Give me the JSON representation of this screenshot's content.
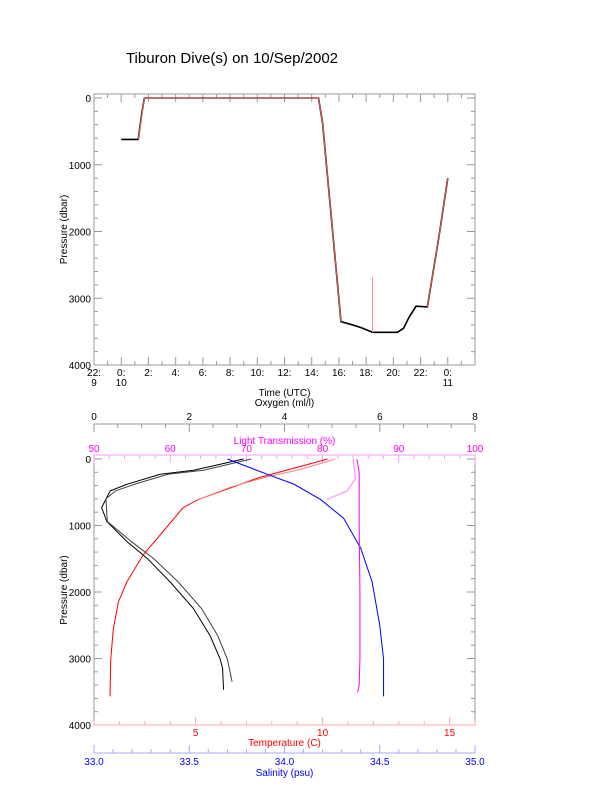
{
  "title": "Tiburon Dive(s) on 10/Sep/2002",
  "chart_data": [
    {
      "type": "line",
      "xlabel": "Time (UTC)",
      "ylabel": "Pressure (dbar)",
      "xlim": [
        "2002-09-09 22:00",
        "2002-09-11 02:00"
      ],
      "ylim": [
        4000,
        -60
      ],
      "y_ticks": [
        0,
        1000,
        2000,
        3000,
        4000
      ],
      "x_ticks": [
        {
          "t": "2002-09-09 22:00",
          "label": "22:",
          "sub": "9"
        },
        {
          "t": "2002-09-10 00:00",
          "label": "0:",
          "sub": "10"
        },
        {
          "t": "2002-09-10 02:00",
          "label": "2:",
          "sub": ""
        },
        {
          "t": "2002-09-10 04:00",
          "label": "4:",
          "sub": ""
        },
        {
          "t": "2002-09-10 06:00",
          "label": "6:",
          "sub": ""
        },
        {
          "t": "2002-09-10 08:00",
          "label": "8:",
          "sub": ""
        },
        {
          "t": "2002-09-10 10:00",
          "label": "10:",
          "sub": ""
        },
        {
          "t": "2002-09-10 12:00",
          "label": "12:",
          "sub": ""
        },
        {
          "t": "2002-09-10 14:00",
          "label": "14:",
          "sub": ""
        },
        {
          "t": "2002-09-10 16:00",
          "label": "16:",
          "sub": ""
        },
        {
          "t": "2002-09-10 18:00",
          "label": "18:",
          "sub": ""
        },
        {
          "t": "2002-09-10 20:00",
          "label": "20:",
          "sub": ""
        },
        {
          "t": "2002-09-10 22:00",
          "label": "22:",
          "sub": ""
        },
        {
          "t": "2002-09-11 00:00",
          "label": "0:",
          "sub": "11"
        }
      ],
      "series": [
        {
          "color": "#000000",
          "points": [
            [
              "2002-09-10 00:00",
              620
            ],
            [
              "2002-09-10 01:15",
              620
            ],
            [
              "2002-09-10 01:30",
              250
            ],
            [
              "2002-09-10 01:42",
              0
            ],
            [
              "2002-09-10 14:30",
              0
            ],
            [
              "2002-09-10 14:48",
              380
            ],
            [
              "2002-09-10 16:09",
              3350
            ],
            [
              "2002-09-10 17:00",
              3400
            ],
            [
              "2002-09-10 17:38",
              3440
            ],
            [
              "2002-09-10 18:28",
              3510
            ],
            [
              "2002-09-10 20:18",
              3510
            ],
            [
              "2002-09-10 20:45",
              3450
            ],
            [
              "2002-09-10 21:10",
              3280
            ],
            [
              "2002-09-10 21:40",
              3120
            ],
            [
              "2002-09-10 22:30",
              3130
            ],
            [
              "2002-09-10 23:20",
              2100
            ],
            [
              "2002-09-11 00:00",
              1200
            ]
          ]
        },
        {
          "color": "#ff6060",
          "points": [
            [
              "2002-09-10 01:15",
              620
            ],
            [
              "2002-09-10 01:42",
              0
            ],
            [
              "2002-09-10 14:30",
              0
            ],
            [
              "2002-09-10 14:48",
              380
            ],
            [
              "2002-09-10 16:09",
              3350
            ]
          ]
        },
        {
          "color": "#ff6060",
          "points": [
            [
              "2002-09-10 22:30",
              3130
            ],
            [
              "2002-09-10 23:20",
              2100
            ],
            [
              "2002-09-11 00:00",
              1200
            ]
          ]
        },
        {
          "color": "#ff8080",
          "points": [
            [
              "2002-09-10 18:28",
              3510
            ],
            [
              "2002-09-10 18:28",
              2680
            ]
          ]
        }
      ]
    },
    {
      "type": "line",
      "ylabel": "Pressure (dbar)",
      "ylim": [
        4000,
        -60
      ],
      "y_ticks": [
        0,
        1000,
        2000,
        3000,
        4000
      ],
      "axes": {
        "oxygen": {
          "label": "Oxygen (ml/l)",
          "range": [
            0,
            8
          ],
          "ticks": [
            0,
            2,
            4,
            6,
            8
          ],
          "minor": 0.5,
          "color": "#000000"
        },
        "light_transmission": {
          "label": "Light Transmission (%)",
          "range": [
            50,
            100
          ],
          "ticks": [
            50,
            60,
            70,
            80,
            90,
            100
          ],
          "minor": 2,
          "color": "#ff00ff"
        },
        "temperature": {
          "label": "Temperature (C)",
          "range": [
            1,
            16
          ],
          "ticks": [
            5,
            10,
            15
          ],
          "minor": 1,
          "color": "#ff0000"
        },
        "salinity": {
          "label": "Salinity (psu)",
          "range": [
            33.0,
            35.0
          ],
          "ticks": [
            "33.0",
            "33.5",
            "34.0",
            "34.5",
            "35.0"
          ],
          "minor": 0.1,
          "color": "#0000ff"
        }
      },
      "series": [
        {
          "axis": "oxygen",
          "color": "#000000",
          "points": [
            [
              3.14,
              0
            ],
            [
              2.09,
              170
            ],
            [
              1.39,
              230
            ],
            [
              0.69,
              380
            ],
            [
              0.34,
              480
            ],
            [
              0.16,
              730
            ],
            [
              0.27,
              940
            ],
            [
              0.69,
              1240
            ],
            [
              1.11,
              1490
            ],
            [
              1.6,
              1850
            ],
            [
              2.09,
              2250
            ],
            [
              2.44,
              2660
            ],
            [
              2.65,
              3010
            ],
            [
              2.7,
              3150
            ],
            [
              2.72,
              3470
            ]
          ]
        },
        {
          "axis": "oxygen",
          "color": "#404040",
          "points": [
            [
              3.3,
              0
            ],
            [
              2.3,
              170
            ],
            [
              1.55,
              230
            ],
            [
              0.85,
              380
            ],
            [
              0.45,
              480
            ],
            [
              0.25,
              600
            ],
            [
              0.28,
              940
            ],
            [
              0.78,
              1240
            ],
            [
              1.24,
              1490
            ],
            [
              1.77,
              1850
            ],
            [
              2.26,
              2250
            ],
            [
              2.6,
              2660
            ],
            [
              2.8,
              3010
            ],
            [
              2.9,
              3350
            ]
          ]
        },
        {
          "axis": "temperature",
          "color": "#ff0000",
          "points": [
            [
              10.2,
              0
            ],
            [
              7.5,
              280
            ],
            [
              5.1,
              610
            ],
            [
              4.5,
              735
            ],
            [
              3.5,
              1190
            ],
            [
              2.94,
              1440
            ],
            [
              2.29,
              1850
            ],
            [
              1.96,
              2150
            ],
            [
              1.76,
              2560
            ],
            [
              1.66,
              3010
            ],
            [
              1.63,
              3570
            ]
          ]
        },
        {
          "axis": "temperature",
          "color": "#ff8080",
          "points": [
            [
              10.5,
              0
            ],
            [
              9.2,
              150
            ],
            [
              7.7,
              280
            ],
            [
              6.4,
              420
            ],
            [
              5.1,
              610
            ]
          ]
        },
        {
          "axis": "salinity",
          "color": "#0000ff",
          "points": [
            [
              33.7,
              0
            ],
            [
              33.91,
              230
            ],
            [
              34.05,
              380
            ],
            [
              34.19,
              610
            ],
            [
              34.31,
              890
            ],
            [
              34.4,
              1340
            ],
            [
              34.46,
              1850
            ],
            [
              34.5,
              2500
            ],
            [
              34.52,
              3010
            ],
            [
              34.52,
              3570
            ]
          ]
        },
        {
          "axis": "light_transmission",
          "color": "#ff00ff",
          "points": [
            [
              84.5,
              0
            ],
            [
              84.8,
              200
            ],
            [
              84.8,
              1000
            ],
            [
              84.9,
              2000
            ],
            [
              84.9,
              3000
            ],
            [
              84.8,
              3400
            ],
            [
              84.6,
              3510
            ]
          ]
        },
        {
          "axis": "light_transmission",
          "color": "#ff80ff",
          "points": [
            [
              84.0,
              0
            ],
            [
              84.3,
              300
            ],
            [
              83.2,
              480
            ],
            [
              80.5,
              610
            ]
          ]
        }
      ]
    }
  ]
}
